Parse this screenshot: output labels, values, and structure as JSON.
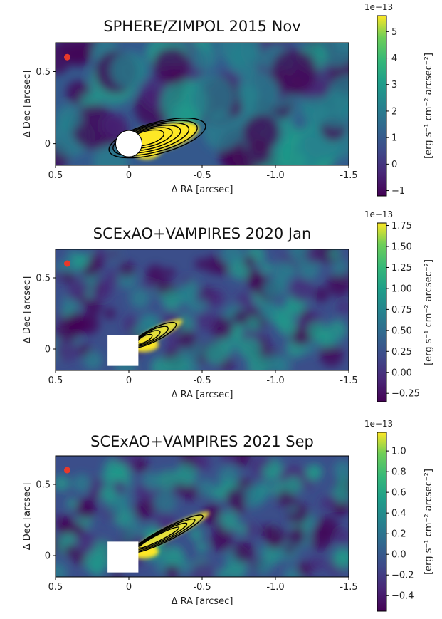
{
  "chart_data": [
    {
      "type": "heatmap",
      "title": "SPHERE/ZIMPOL 2015 Nov",
      "xlabel": "Δ RA [arcsec]",
      "ylabel": "Δ Dec [arcsec]",
      "xlim": [
        0.5,
        -1.5
      ],
      "ylim": [
        -0.15,
        0.7
      ],
      "xticks": [
        0.5,
        0,
        -0.5,
        -1.0,
        -1.5
      ],
      "xtick_labels": [
        "0.5",
        "0",
        "-0.5",
        "-1.0",
        "-1.5"
      ],
      "yticks": [
        0,
        0.5
      ],
      "ytick_labels": [
        "0",
        "0.5"
      ],
      "colorbar": {
        "label": "[erg s⁻¹ cm⁻² arcsec⁻²]",
        "multiplier": "1e−13",
        "range": [
          -1.2,
          5.6
        ],
        "ticks": [
          -1,
          0,
          1,
          2,
          3,
          4,
          5
        ],
        "tick_labels": [
          "−1",
          "0",
          "1",
          "2",
          "3",
          "4",
          "5"
        ]
      },
      "mask": {
        "shape": "circle",
        "center": [
          0,
          0
        ],
        "radius": 0.09
      },
      "marker": {
        "x": 0.42,
        "y": 0.6,
        "color": "#e8392a"
      },
      "contours_present": true
    },
    {
      "type": "heatmap",
      "title": "SCExAO+VAMPIRES 2020 Jan",
      "xlabel": "Δ RA [arcsec]",
      "ylabel": "Δ Dec [arcsec]",
      "xlim": [
        0.5,
        -1.5
      ],
      "ylim": [
        -0.15,
        0.7
      ],
      "xticks": [
        0.5,
        0,
        -0.5,
        -1.0,
        -1.5
      ],
      "xtick_labels": [
        "0.5",
        "0",
        "-0.5",
        "-1.0",
        "-1.5"
      ],
      "yticks": [
        0,
        0.5
      ],
      "ytick_labels": [
        "0",
        "0.5"
      ],
      "colorbar": {
        "label": "[erg s⁻¹ cm⁻² arcsec⁻²]",
        "multiplier": "1e−13",
        "range": [
          -0.35,
          1.78
        ],
        "ticks": [
          -0.25,
          0,
          0.25,
          0.5,
          0.75,
          1.0,
          1.25,
          1.5,
          1.75
        ],
        "tick_labels": [
          "−0.25",
          "0.00",
          "0.25",
          "0.50",
          "0.75",
          "1.00",
          "1.25",
          "1.50",
          "1.75"
        ]
      },
      "mask": {
        "shape": "square",
        "center": [
          0.04,
          -0.01
        ],
        "half_size": 0.105
      },
      "marker": {
        "x": 0.42,
        "y": 0.6,
        "color": "#e8392a"
      },
      "contours_present": true
    },
    {
      "type": "heatmap",
      "title": "SCExAO+VAMPIRES 2021 Sep",
      "xlabel": "Δ RA [arcsec]",
      "ylabel": "Δ Dec [arcsec]",
      "xlim": [
        0.5,
        -1.5
      ],
      "ylim": [
        -0.15,
        0.7
      ],
      "xticks": [
        0.5,
        0,
        -0.5,
        -1.0,
        -1.5
      ],
      "xtick_labels": [
        "0.5",
        "0",
        "-0.5",
        "-1.0",
        "-1.5"
      ],
      "yticks": [
        0,
        0.5
      ],
      "ytick_labels": [
        "0",
        "0.5"
      ],
      "colorbar": {
        "label": "[erg s⁻¹ cm⁻² arcsec⁻²]",
        "multiplier": "1e−13",
        "range": [
          -0.55,
          1.18
        ],
        "ticks": [
          -0.4,
          -0.2,
          0,
          0.2,
          0.4,
          0.6,
          0.8,
          1.0
        ],
        "tick_labels": [
          "−0.4",
          "−0.2",
          "0.0",
          "0.2",
          "0.4",
          "0.6",
          "0.8",
          "1.0"
        ]
      },
      "mask": {
        "shape": "square",
        "center": [
          0.04,
          -0.01
        ],
        "half_size": 0.105
      },
      "marker": {
        "x": 0.42,
        "y": 0.6,
        "color": "#e8392a"
      },
      "contours_present": true
    }
  ]
}
